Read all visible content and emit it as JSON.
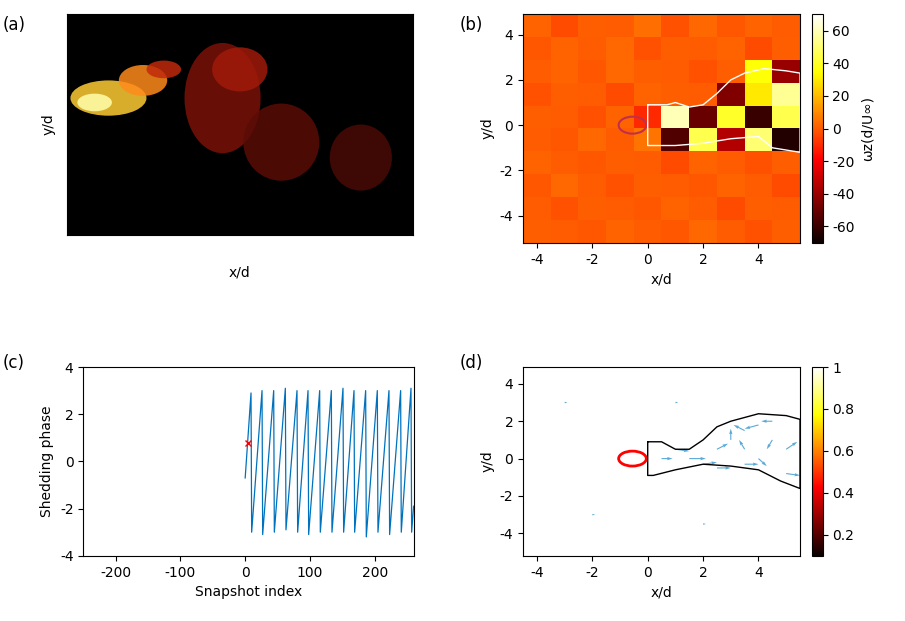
{
  "chart_data": [
    {
      "type": "image",
      "panel_label": "(a)",
      "xlabel": "x/d",
      "ylabel": "y/d",
      "tick_labels": false
    },
    {
      "type": "heatmap",
      "panel_label": "(b)",
      "xlabel": "x/d",
      "ylabel": "y/d",
      "xlim": [
        -4.5,
        5.5
      ],
      "ylim": [
        -5.2,
        4.9
      ],
      "xticks": [
        -4,
        -2,
        0,
        2,
        4
      ],
      "yticks": [
        -4,
        -2,
        0,
        2,
        4
      ],
      "cells": [
        [
          2,
          -3,
          1,
          0,
          4,
          -2,
          3,
          -1,
          2,
          0
        ],
        [
          -1,
          2,
          0,
          3,
          -2,
          1,
          0,
          2,
          -3,
          1
        ],
        [
          0,
          2,
          -1,
          3,
          1,
          0,
          -2,
          1,
          35,
          -40
        ],
        [
          -2,
          1,
          0,
          -3,
          2,
          1,
          0,
          -45,
          30,
          55
        ],
        [
          1,
          0,
          -2,
          2,
          -10,
          60,
          -50,
          40,
          -60,
          45
        ],
        [
          0,
          -1,
          3,
          0,
          5,
          -55,
          45,
          -35,
          50,
          -65
        ],
        [
          2,
          0,
          -1,
          1,
          0,
          -3,
          2,
          0,
          -2,
          1
        ],
        [
          -1,
          3,
          0,
          -2,
          1,
          0,
          -1,
          2,
          0,
          -3
        ],
        [
          0,
          -2,
          1,
          0,
          -1,
          2,
          0,
          -3,
          1,
          0
        ],
        [
          1,
          0,
          -1,
          2,
          0,
          -1,
          3,
          0,
          -2,
          1
        ]
      ],
      "outline": {
        "x": [
          0,
          0.7,
          1,
          1.5,
          2,
          2.5,
          3,
          3.5,
          4.2,
          5.0,
          5.5,
          5.5,
          4.5,
          4,
          3,
          2,
          1,
          0,
          0
        ],
        "y": [
          0.9,
          0.9,
          1.0,
          0.8,
          0.9,
          1.4,
          2.0,
          2.3,
          2.5,
          2.4,
          2.3,
          -1.2,
          -1.0,
          -0.5,
          -0.6,
          -0.8,
          -0.9,
          -0.9,
          0.9
        ],
        "color": "#ffffff"
      },
      "colorbar": {
        "label": "ωz(d/U∞)",
        "range": [
          -70,
          70
        ],
        "ticks": [
          -60,
          -40,
          -20,
          0,
          20,
          40,
          60
        ]
      }
    },
    {
      "type": "line",
      "panel_label": "(c)",
      "xlabel": "Snapshot index",
      "ylabel": "Shedding phase",
      "xlim": [
        -250,
        260
      ],
      "ylim": [
        -4,
        4
      ],
      "xticks": [
        -200,
        -100,
        0,
        100,
        200
      ],
      "yticks": [
        -4,
        -2,
        0,
        2,
        4
      ],
      "series": [
        {
          "type": "line",
          "color": "#0072bd",
          "x": [
            0,
            9,
            10,
            26,
            27,
            44,
            45,
            62,
            63,
            80,
            81,
            97,
            98,
            115,
            116,
            133,
            134,
            151,
            152,
            168,
            169,
            186,
            187,
            204,
            205,
            222,
            223,
            240,
            241,
            256,
            257,
            260
          ],
          "values": [
            -0.7,
            2.9,
            -3.0,
            3.0,
            -3.1,
            3.0,
            -3.0,
            3.1,
            -2.9,
            3.0,
            -3.0,
            3.0,
            -3.1,
            3.0,
            -3.0,
            3.0,
            -3.0,
            3.1,
            -3.0,
            3.0,
            -3.0,
            3.0,
            -3.2,
            3.0,
            -3.0,
            3.0,
            -3.1,
            3.0,
            -3.0,
            3.1,
            -3.0,
            -1.9
          ]
        },
        {
          "type": "scatter",
          "color": "#ff0000",
          "marker": "x",
          "x": [
            5
          ],
          "values": [
            0.8
          ]
        }
      ]
    },
    {
      "type": "quiver",
      "panel_label": "(d)",
      "xlabel": "x/d",
      "ylabel": "y/d",
      "xlim": [
        -4.5,
        5.5
      ],
      "ylim": [
        -5.2,
        4.9
      ],
      "xticks": [
        -4,
        -2,
        0,
        2,
        4
      ],
      "yticks": [
        -4,
        -2,
        0,
        2,
        4
      ],
      "color": "#5aa9d6",
      "x": [
        1,
        1.5,
        2,
        2.5,
        3,
        3.5,
        4,
        4.5,
        4,
        3.5,
        5,
        5,
        0.5,
        2.5,
        3.5,
        4.5,
        -3,
        -2,
        1,
        2
      ],
      "y": [
        0.5,
        0,
        -0.3,
        0.5,
        1,
        1.5,
        1.8,
        1,
        0,
        -0.3,
        0.5,
        -0.8,
        0,
        -0.5,
        0.5,
        2,
        3,
        -3,
        3,
        -3.5
      ],
      "u": [
        0.5,
        0.6,
        0.5,
        0.4,
        0,
        -0.4,
        -0.5,
        -0.2,
        0.3,
        0.5,
        0.4,
        0.5,
        0.4,
        0.5,
        -0.2,
        -0.4,
        0.1,
        0.1,
        0.1,
        0.1
      ],
      "v": [
        -0.1,
        0,
        0.1,
        0.3,
        0.6,
        0.3,
        -0.2,
        -0.5,
        -0.4,
        0,
        0.4,
        -0.1,
        0,
        0,
        0.5,
        0,
        0,
        0,
        0,
        0
      ],
      "outline": {
        "x": [
          0,
          0.5,
          1,
          1.5,
          2,
          2.5,
          3,
          4,
          5,
          5.5,
          5.5,
          4.8,
          4,
          3,
          2,
          1,
          0.2,
          0,
          0
        ],
        "y": [
          0.9,
          0.9,
          0.5,
          0.5,
          1.0,
          1.7,
          2.0,
          2.4,
          2.3,
          2.1,
          -1.6,
          -1.2,
          -0.6,
          -0.4,
          -0.3,
          -0.6,
          -0.9,
          -0.9,
          0.9
        ],
        "color": "#000000"
      },
      "colorbar": {
        "range": [
          0.1,
          1
        ],
        "ticks": [
          0.2,
          0.4,
          0.6,
          0.8,
          1
        ]
      }
    }
  ]
}
